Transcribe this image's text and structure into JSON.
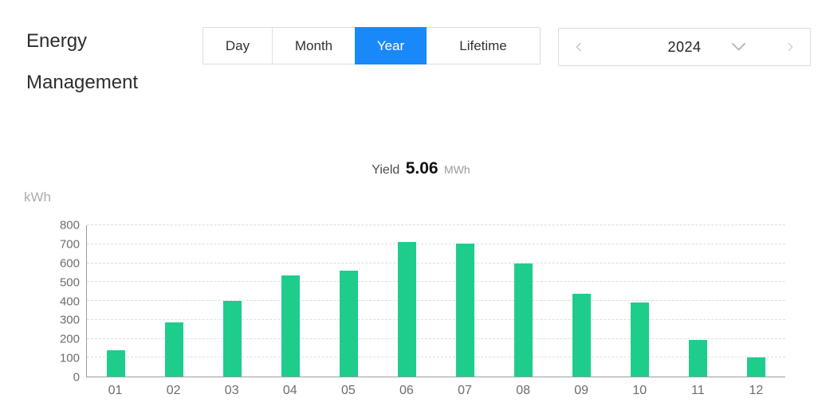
{
  "header": {
    "title": "Energy Management",
    "tabs": [
      {
        "label": "Day",
        "active": false
      },
      {
        "label": "Month",
        "active": false
      },
      {
        "label": "Year",
        "active": true
      },
      {
        "label": "Lifetime",
        "active": false
      }
    ],
    "year_selector": {
      "value": "2024",
      "prev_icon": "chevron-left",
      "next_icon": "chevron-right",
      "dropdown_icon": "chevron-down"
    }
  },
  "summary": {
    "label": "Yield",
    "value": "5.06",
    "unit": "MWh"
  },
  "chart_data": {
    "type": "bar",
    "title": "Yield 5.06 MWh",
    "categories": [
      "01",
      "02",
      "03",
      "04",
      "05",
      "06",
      "07",
      "08",
      "09",
      "10",
      "11",
      "12"
    ],
    "values": [
      140,
      285,
      400,
      535,
      560,
      710,
      705,
      600,
      440,
      390,
      195,
      100
    ],
    "xlabel": "",
    "ylabel": "kWh",
    "ylim": [
      0,
      800
    ],
    "ytick_step": 100,
    "grid": true,
    "legend": false,
    "bar_color": "#1ecd8c"
  },
  "colors": {
    "accent_blue": "#1989fa",
    "bar_green": "#1ecd8c",
    "axis_line": "#9c9c9c",
    "grid_line": "#dfdfdf",
    "tick_text": "#6d6d6d"
  }
}
